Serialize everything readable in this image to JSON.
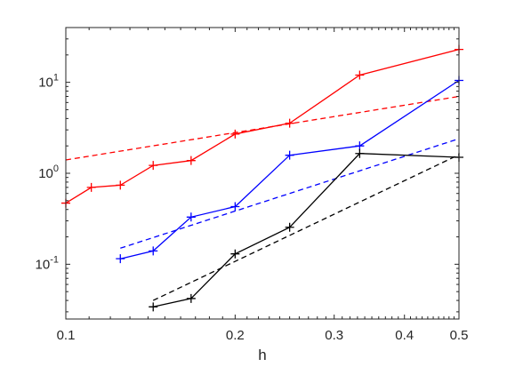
{
  "chart_data": {
    "type": "line",
    "title": "",
    "xlabel": "h",
    "ylabel": "",
    "xscale": "log",
    "yscale": "log",
    "xlim": [
      0.1,
      0.5
    ],
    "ylim": [
      0.025,
      40
    ],
    "grid": false,
    "legend": "none",
    "x_tick_labels": [
      {
        "value": 0.1,
        "label": "0.1"
      },
      {
        "value": 0.2,
        "label": "0.2"
      },
      {
        "value": 0.3,
        "label": "0.3"
      },
      {
        "value": 0.4,
        "label": "0.4"
      },
      {
        "value": 0.5,
        "label": "0.5"
      }
    ],
    "y_tick_labels": [
      {
        "value": 0.1,
        "base": "10",
        "exp": "-1"
      },
      {
        "value": 1,
        "base": "10",
        "exp": "0"
      },
      {
        "value": 10,
        "base": "10",
        "exp": "1"
      }
    ],
    "series": [
      {
        "color": "#ff0000",
        "style": "solid",
        "marker": "+",
        "x": [
          0.1,
          0.111,
          0.125,
          0.143,
          0.167,
          0.2,
          0.25,
          0.333,
          0.5
        ],
        "y": [
          0.47,
          0.7,
          0.74,
          1.22,
          1.38,
          2.7,
          3.55,
          12.0,
          23.0
        ]
      },
      {
        "color": "#ff0000",
        "style": "dashed",
        "marker": "none",
        "x": [
          0.1,
          0.5
        ],
        "y": [
          1.4,
          7.0
        ]
      },
      {
        "color": "#0000ff",
        "style": "solid",
        "marker": "+",
        "x": [
          0.125,
          0.143,
          0.167,
          0.2,
          0.25,
          0.333,
          0.5
        ],
        "y": [
          0.115,
          0.14,
          0.33,
          0.43,
          1.58,
          2.0,
          10.5
        ]
      },
      {
        "color": "#0000ff",
        "style": "dashed",
        "marker": "none",
        "x": [
          0.125,
          0.5
        ],
        "y": [
          0.15,
          2.4
        ]
      },
      {
        "color": "#000000",
        "style": "solid",
        "marker": "+",
        "x": [
          0.143,
          0.167,
          0.2,
          0.25,
          0.333,
          0.5
        ],
        "y": [
          0.034,
          0.042,
          0.13,
          0.255,
          1.65,
          1.5
        ]
      },
      {
        "color": "#000000",
        "style": "dashed",
        "marker": "none",
        "x": [
          0.143,
          0.5
        ],
        "y": [
          0.04,
          1.6
        ]
      }
    ]
  }
}
